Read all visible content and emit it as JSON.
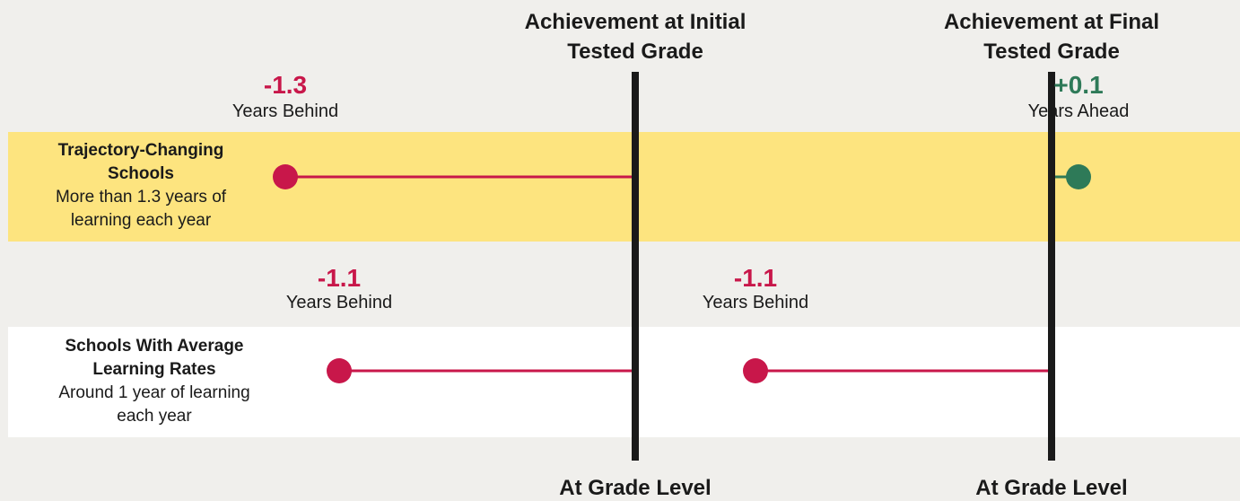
{
  "chart_data": {
    "type": "dumbbell",
    "categories": [
      "Trajectory-Changing Schools",
      "Schools With Average Learning Rates"
    ],
    "category_notes": [
      "More than 1.3 years of learning each year",
      "Around 1 year of learning each year"
    ],
    "series": [
      {
        "name": "Achievement at Initial Tested Grade",
        "colors": [
          "#c8174a",
          "#c8174a"
        ],
        "values": [
          -1.3,
          -1.1
        ],
        "value_labels": [
          "-1.3",
          "-1.1"
        ],
        "value_notes": [
          "Years Behind",
          "Years Behind"
        ]
      },
      {
        "name": "Achievement at Final Tested Grade",
        "colors": [
          "#2e7a58",
          "#c8174a"
        ],
        "values": [
          0.1,
          -1.1
        ],
        "value_labels": [
          "+0.1",
          "-1.1"
        ],
        "value_notes": [
          "Years Ahead",
          "Years Behind"
        ]
      }
    ],
    "xlim": [
      -1.5,
      0.5
    ],
    "xticks": [
      {
        "value": 0,
        "label": "At Grade Level"
      }
    ]
  }
}
